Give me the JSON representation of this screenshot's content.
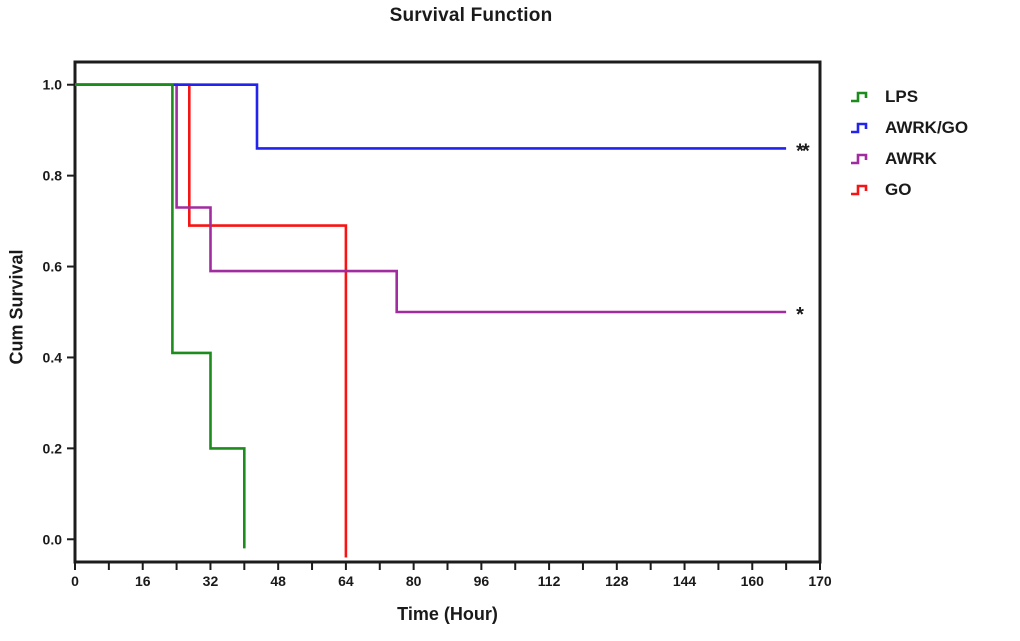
{
  "title": "Survival Function",
  "colors": {
    "frame": "#1c1c1c",
    "text": "#1a1a1a",
    "green": "#1e8b1e",
    "blue": "#2323ee",
    "purple": "#a02ca0",
    "red": "#f71414"
  },
  "chart_data": {
    "type": "line",
    "subtype": "kaplan-meier-step",
    "title": "Survival Function",
    "xlabel": "Time (Hour)",
    "ylabel": "Cum Survival",
    "xlim": [
      0,
      176
    ],
    "ylim": [
      -0.05,
      1.05
    ],
    "x_major_ticks": [
      0,
      16,
      32,
      48,
      64,
      80,
      96,
      112,
      128,
      144,
      160
    ],
    "x_minor_ticks": [
      8,
      24,
      40,
      56,
      72,
      88,
      104,
      120,
      136,
      152,
      168
    ],
    "x_axis_end_label": "170",
    "y_ticks": [
      0.0,
      0.2,
      0.4,
      0.6,
      0.8,
      1.0
    ],
    "grid": false,
    "legend_position": "right",
    "series": [
      {
        "name": "LPS",
        "color": "#1e8b1e",
        "points": [
          [
            0,
            1.0
          ],
          [
            23,
            1.0
          ],
          [
            23,
            0.41
          ],
          [
            32,
            0.41
          ],
          [
            32,
            0.2
          ],
          [
            40,
            0.2
          ],
          [
            40,
            -0.02
          ]
        ],
        "significance": ""
      },
      {
        "name": "AWRK/GO",
        "color": "#2323ee",
        "points": [
          [
            0,
            1.0
          ],
          [
            43,
            1.0
          ],
          [
            43,
            0.86
          ],
          [
            168,
            0.86
          ]
        ],
        "significance": "**"
      },
      {
        "name": "AWRK",
        "color": "#a02ca0",
        "points": [
          [
            0,
            1.0
          ],
          [
            24,
            1.0
          ],
          [
            24,
            0.73
          ],
          [
            32,
            0.73
          ],
          [
            32,
            0.59
          ],
          [
            76,
            0.59
          ],
          [
            76,
            0.5
          ],
          [
            168,
            0.5
          ]
        ],
        "significance": "*"
      },
      {
        "name": "GO",
        "color": "#f71414",
        "points": [
          [
            0,
            1.0
          ],
          [
            27,
            1.0
          ],
          [
            27,
            0.69
          ],
          [
            64,
            0.69
          ],
          [
            64,
            -0.04
          ]
        ],
        "significance": ""
      }
    ]
  },
  "legend": {
    "items": [
      {
        "label": "LPS",
        "color": "#1e8b1e"
      },
      {
        "label": "AWRK/GO",
        "color": "#2323ee"
      },
      {
        "label": "AWRK",
        "color": "#a02ca0"
      },
      {
        "label": "GO",
        "color": "#f71414"
      }
    ]
  },
  "annotations": [
    {
      "text": "**",
      "series": "AWRK/GO"
    },
    {
      "text": "*",
      "series": "AWRK"
    }
  ]
}
